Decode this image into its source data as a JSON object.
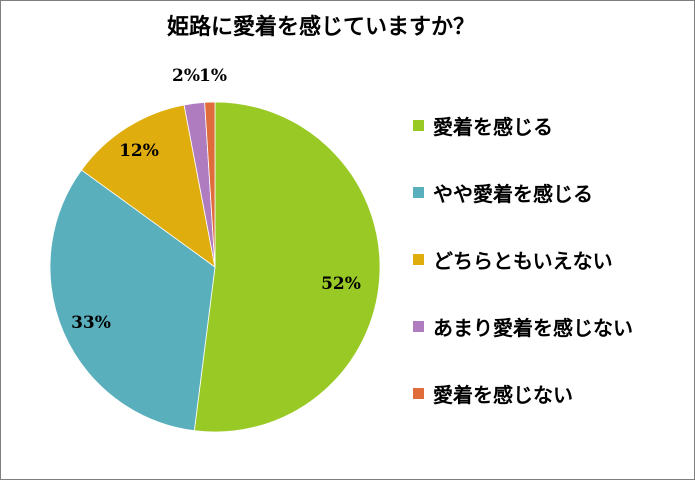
{
  "chart_data": {
    "type": "pie",
    "title": "姫路に愛着を感じていますか？",
    "categories": [
      "愛着を感じる",
      "やや愛着を感じる",
      "どちらともいえない",
      "あまり愛着を感じない",
      "愛着を感じない"
    ],
    "values": [
      52,
      33,
      12,
      2,
      1
    ],
    "labels": [
      "52%",
      "33%",
      "12%",
      "2%",
      "1%"
    ],
    "colors": [
      "#99c925",
      "#5aafbc",
      "#dfad0d",
      "#b07cc0",
      "#e06c3c"
    ],
    "start_angle_deg": 0,
    "direction": "clockwise",
    "legend_position": "right"
  }
}
